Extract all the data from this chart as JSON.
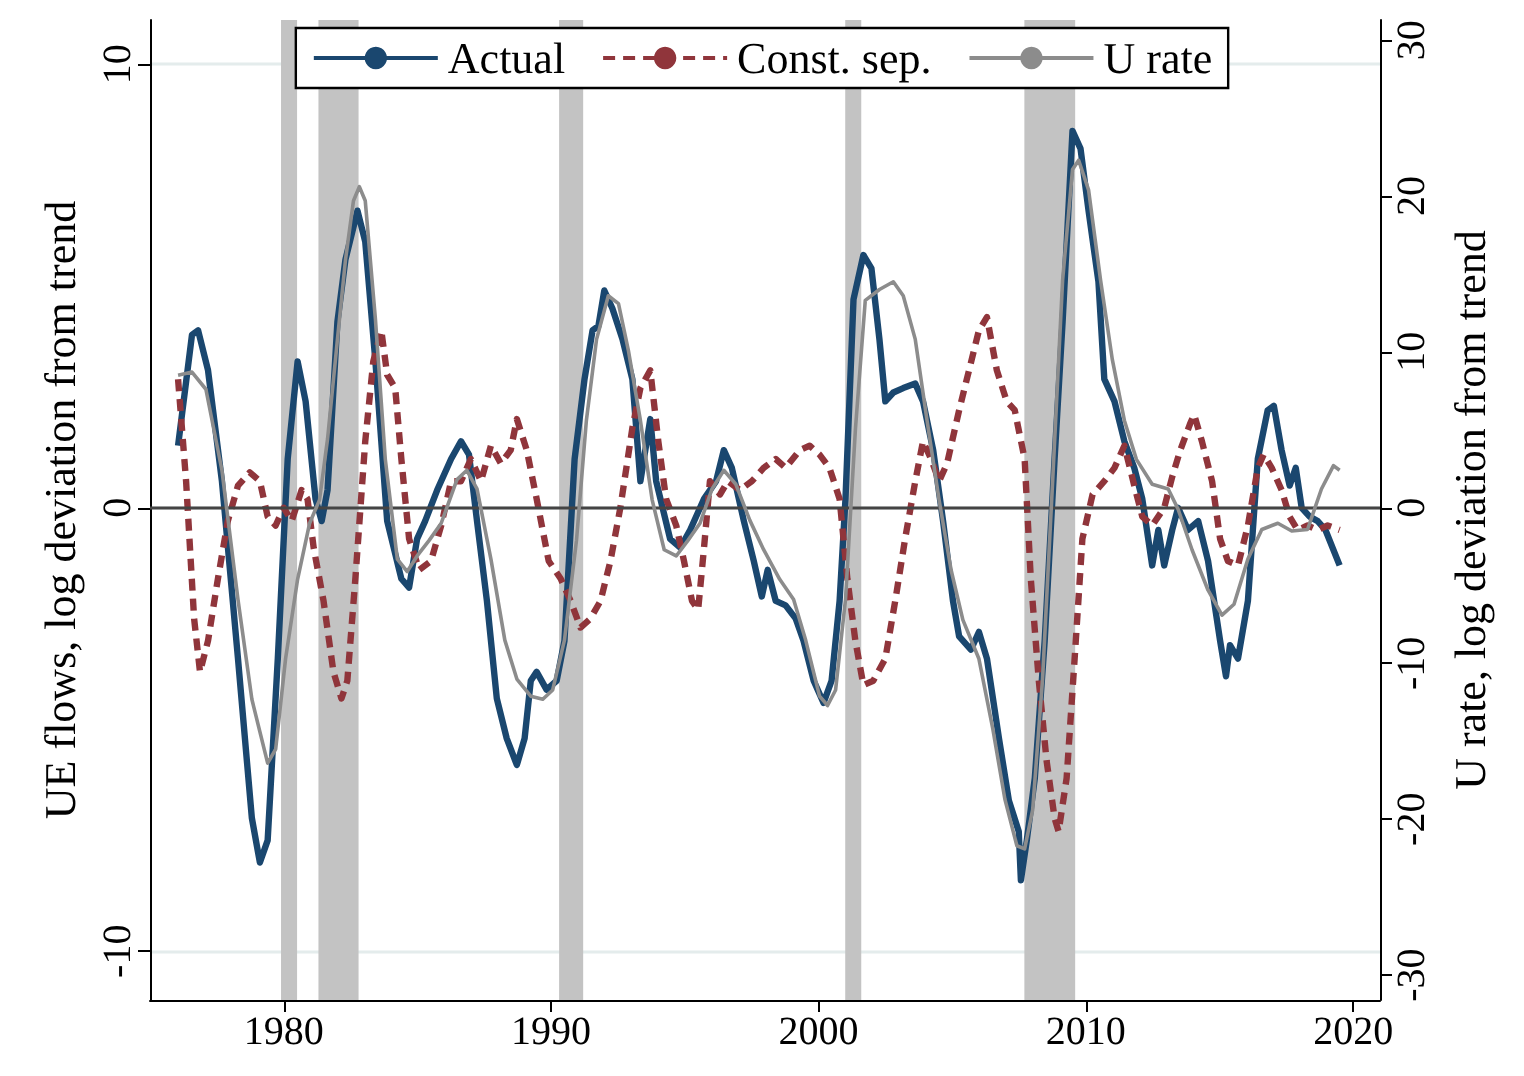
{
  "chart_data": {
    "type": "line",
    "ylabel": "UE flows, log deviation from trend",
    "y2label": "U rate, log deviation from trend",
    "xlim": [
      1975,
      2021
    ],
    "xticks": [
      1980,
      1990,
      2000,
      2010,
      2020
    ],
    "ylim": [
      -11.1,
      11
    ],
    "yticks": [
      -10,
      0,
      10
    ],
    "y2lim": [
      -31.6,
      31.3
    ],
    "y2ticks": [
      -30,
      -20,
      -10,
      0,
      10,
      20,
      30
    ],
    "grid": "y",
    "legend": "top",
    "marker": "none",
    "ref_lines": [
      {
        "axis": "y",
        "value": 0,
        "label": null,
        "color": "#444444",
        "line_style": "solid"
      }
    ],
    "bands": [
      {
        "axis": "x",
        "from": 1979.9,
        "to": 1980.5,
        "label": null,
        "color": "#c3c3c3"
      },
      {
        "axis": "x",
        "from": 1981.3,
        "to": 1982.8,
        "label": null,
        "color": "#c3c3c3"
      },
      {
        "axis": "x",
        "from": 1990.3,
        "to": 1991.2,
        "label": null,
        "color": "#c3c3c3"
      },
      {
        "axis": "x",
        "from": 2001.0,
        "to": 2001.6,
        "label": null,
        "color": "#c3c3c3"
      },
      {
        "axis": "x",
        "from": 2007.7,
        "to": 2009.6,
        "label": null,
        "color": "#c3c3c3"
      }
    ],
    "series": [
      {
        "name": "Actual",
        "color": "#1a476f",
        "line_style": "solid",
        "x": [
          1976.05,
          1976.57,
          1976.8,
          1977.17,
          1977.69,
          1978.29,
          1978.81,
          1979.11,
          1979.4,
          1979.78,
          1980.15,
          1980.52,
          1980.82,
          1981.19,
          1981.42,
          1981.64,
          1982.01,
          1982.31,
          1982.76,
          1983.05,
          1983.43,
          1983.87,
          1984.4,
          1984.69,
          1984.99,
          1985.29,
          1985.74,
          1986.26,
          1986.63,
          1986.93,
          1987.23,
          1987.6,
          1987.97,
          1988.34,
          1988.72,
          1989.01,
          1989.24,
          1989.46,
          1989.83,
          1990.21,
          1990.5,
          1990.88,
          1991.25,
          1991.55,
          1991.77,
          1991.99,
          1992.29,
          1992.67,
          1993.04,
          1993.34,
          1993.71,
          1993.93,
          1994.45,
          1994.83,
          1995.2,
          1995.72,
          1996.17,
          1996.46,
          1996.76,
          1997.21,
          1997.58,
          1997.88,
          1998.1,
          1998.4,
          1998.77,
          1999.15,
          1999.44,
          1999.82,
          2000.19,
          2000.49,
          2000.79,
          2001.01,
          2001.31,
          2001.68,
          2001.98,
          2002.28,
          2002.5,
          2002.8,
          2003.17,
          2003.62,
          2003.91,
          2004.29,
          2004.66,
          2005.03,
          2005.26,
          2005.7,
          2006.0,
          2006.3,
          2006.75,
          2007.12,
          2007.49,
          2007.57,
          2007.79,
          2008.09,
          2008.46,
          2008.83,
          2009.13,
          2009.5,
          2009.8,
          2010.1,
          2010.47,
          2010.69,
          2011.07,
          2011.44,
          2011.81,
          2012.11,
          2012.48,
          2012.71,
          2012.93,
          2013.23,
          2013.45,
          2013.82,
          2014.2,
          2014.57,
          2015.02,
          2015.24,
          2015.39,
          2015.69,
          2016.06,
          2016.43,
          2016.8,
          2017.03,
          2017.32,
          2017.62,
          2017.85,
          2018.07,
          2018.37,
          2018.67,
          2018.96,
          2019.49
        ],
        "values": [
          1.4,
          3.9,
          4.0,
          3.1,
          0.6,
          -3.4,
          -7.0,
          -8.0,
          -7.5,
          -3.4,
          1.1,
          3.3,
          2.4,
          0.2,
          -0.3,
          0.4,
          4.2,
          5.6,
          6.7,
          6.0,
          3.3,
          -0.3,
          -1.6,
          -1.8,
          -0.7,
          -0.3,
          0.4,
          1.1,
          1.5,
          1.2,
          -0.3,
          -2.1,
          -4.3,
          -5.2,
          -5.8,
          -5.2,
          -3.9,
          -3.7,
          -4.1,
          -3.9,
          -3.0,
          1.1,
          2.9,
          4.0,
          4.1,
          4.9,
          4.5,
          3.8,
          2.9,
          0.6,
          2.0,
          0.6,
          -0.7,
          -0.9,
          -0.5,
          0.2,
          0.6,
          1.3,
          0.9,
          -0.3,
          -1.2,
          -2.0,
          -1.4,
          -2.1,
          -2.2,
          -2.5,
          -3.0,
          -3.9,
          -4.4,
          -3.9,
          -2.1,
          0.2,
          4.7,
          5.7,
          5.4,
          3.8,
          2.4,
          2.6,
          2.7,
          2.8,
          2.4,
          1.3,
          -0.3,
          -2.1,
          -2.9,
          -3.2,
          -2.8,
          -3.4,
          -5.2,
          -6.6,
          -7.3,
          -8.4,
          -7.5,
          -6.1,
          -3.0,
          1.1,
          4.2,
          8.5,
          8.1,
          6.7,
          5.1,
          2.9,
          2.4,
          1.5,
          0.9,
          0.2,
          -1.3,
          -0.5,
          -1.3,
          -0.5,
          0,
          -0.5,
          -0.3,
          -1.2,
          -3.0,
          -3.8,
          -3.1,
          -3.4,
          -2.1,
          1.1,
          2.2,
          2.3,
          1.3,
          0.5,
          0.9,
          0,
          -0.2,
          -0.3,
          -0.5,
          -1.3
        ]
      },
      {
        "name": "Const. sep.",
        "color": "#90353b",
        "line_style": "dashed",
        "x": [
          1976.05,
          1976.35,
          1976.65,
          1976.87,
          1977.17,
          1977.54,
          1977.91,
          1978.29,
          1978.73,
          1979.11,
          1979.4,
          1979.7,
          1980.0,
          1980.3,
          1980.67,
          1980.89,
          1981.12,
          1981.49,
          1981.86,
          1982.16,
          1982.38,
          1982.68,
          1983.05,
          1983.35,
          1983.65,
          1983.87,
          1984.17,
          1984.4,
          1984.69,
          1985.07,
          1985.51,
          1985.89,
          1986.26,
          1986.63,
          1987.0,
          1987.38,
          1987.75,
          1988.12,
          1988.49,
          1988.72,
          1989.09,
          1989.46,
          1989.91,
          1990.36,
          1990.73,
          1991.1,
          1991.47,
          1991.85,
          1992.22,
          1992.59,
          1993.04,
          1993.34,
          1993.71,
          1994.01,
          1994.3,
          1994.68,
          1994.97,
          1995.27,
          1995.5,
          1995.72,
          1995.94,
          1996.32,
          1996.61,
          1997.06,
          1997.51,
          1997.95,
          1998.4,
          1998.77,
          1999.3,
          1999.67,
          2000.04,
          2000.41,
          2000.79,
          2001.08,
          2001.38,
          2001.68,
          2002.05,
          2002.5,
          2002.87,
          2003.24,
          2003.62,
          2003.91,
          2004.21,
          2004.51,
          2004.81,
          2005.26,
          2005.63,
          2006.0,
          2006.3,
          2006.67,
          2007.04,
          2007.34,
          2007.71,
          2007.94,
          2008.24,
          2008.53,
          2008.83,
          2008.98,
          2009.28,
          2009.58,
          2009.87,
          2010.25,
          2010.69,
          2011.07,
          2011.44,
          2011.81,
          2012.11,
          2012.48,
          2012.93,
          2013.23,
          2013.53,
          2013.9,
          2014.05,
          2014.34,
          2014.72,
          2015.02,
          2015.31,
          2015.69,
          2016.06,
          2016.43,
          2016.65,
          2016.95,
          2017.32,
          2017.62,
          2017.92,
          2018.29,
          2018.67,
          2019.04,
          2019.49
        ],
        "values": [
          2.9,
          0.6,
          -2.5,
          -3.7,
          -3.0,
          -1.6,
          -0.3,
          0.5,
          0.8,
          0.6,
          -0.2,
          -0.4,
          0,
          -0.3,
          0.4,
          0.2,
          -0.9,
          -2.1,
          -3.7,
          -4.3,
          -3.9,
          -1.6,
          1.5,
          3.3,
          4.0,
          3.0,
          2.7,
          1.1,
          -0.7,
          -1.4,
          -1.2,
          -0.4,
          0.6,
          0.6,
          1.1,
          0.6,
          1.4,
          1.0,
          1.3,
          2.0,
          1.3,
          0.2,
          -1.2,
          -1.6,
          -2.1,
          -2.7,
          -2.5,
          -2.1,
          -1.2,
          0,
          1.8,
          2.7,
          3.1,
          1.5,
          0.2,
          -0.4,
          -1.2,
          -2.1,
          -2.3,
          -0.9,
          0.6,
          0.3,
          0.6,
          0.4,
          0.6,
          0.9,
          1.1,
          0.9,
          1.3,
          1.4,
          1.2,
          0.9,
          0.2,
          -1.6,
          -3.0,
          -4.0,
          -3.9,
          -3.4,
          -2.1,
          -0.7,
          0.6,
          1.5,
          1.1,
          0.6,
          1.0,
          2.2,
          3.1,
          4.0,
          4.3,
          3.1,
          2.4,
          2.2,
          1.1,
          -1.6,
          -3.9,
          -5.7,
          -7.0,
          -7.3,
          -6.1,
          -3.4,
          -0.7,
          0.3,
          0.6,
          0.9,
          1.4,
          0.5,
          -0.2,
          -0.4,
          0,
          0.7,
          1.3,
          1.9,
          2.1,
          1.5,
          0.6,
          -0.7,
          -1.2,
          -1.3,
          -0.4,
          0.9,
          1.2,
          0.9,
          0.4,
          -0.2,
          -0.5,
          -0.4,
          -0.5,
          -0.4,
          -0.5
        ]
      },
      {
        "name": "U rate",
        "color": "#8c8c8c",
        "line_style": "solid",
        "axis": "y2",
        "x": [
          1976.05,
          1976.57,
          1977.09,
          1977.69,
          1978.29,
          1978.81,
          1979.4,
          1979.7,
          1980.07,
          1980.52,
          1980.97,
          1981.34,
          1981.64,
          1982.01,
          1982.31,
          1982.61,
          1982.83,
          1983.05,
          1983.43,
          1983.8,
          1984.25,
          1984.62,
          1984.99,
          1985.44,
          1985.89,
          1986.48,
          1986.85,
          1987.23,
          1987.75,
          1988.27,
          1988.72,
          1989.24,
          1989.69,
          1990.06,
          1990.5,
          1990.95,
          1991.32,
          1991.7,
          1992.14,
          1992.52,
          1992.89,
          1993.34,
          1993.78,
          1994.23,
          1994.68,
          1995.12,
          1995.57,
          1996.02,
          1996.46,
          1996.91,
          1997.43,
          1997.95,
          1998.55,
          1999.07,
          1999.52,
          2000.04,
          2000.34,
          2000.64,
          2001.01,
          2001.38,
          2001.75,
          2002.28,
          2002.8,
          2003.17,
          2003.62,
          2004.06,
          2004.51,
          2004.96,
          2005.4,
          2006.0,
          2006.52,
          2006.97,
          2007.42,
          2007.71,
          2008.01,
          2008.38,
          2008.76,
          2009.13,
          2009.5,
          2009.73,
          2010.1,
          2010.55,
          2010.99,
          2011.44,
          2011.89,
          2012.48,
          2013.08,
          2013.45,
          2013.97,
          2014.57,
          2015.09,
          2015.54,
          2016.06,
          2016.58,
          2017.18,
          2017.7,
          2018.29,
          2018.81,
          2019.26,
          2019.49
        ],
        "values": [
          8.5,
          8.7,
          7.6,
          2.4,
          -5.9,
          -12.3,
          -16.4,
          -15.5,
          -9.7,
          -4.6,
          -1.0,
          0.5,
          4.4,
          10.8,
          15.9,
          19.7,
          20.6,
          19.7,
          12.1,
          3.1,
          -3.3,
          -4.1,
          -3.1,
          -2.1,
          -1.0,
          1.8,
          2.4,
          1.2,
          -3.3,
          -8.5,
          -11.0,
          -12.1,
          -12.3,
          -11.7,
          -8.5,
          -2.1,
          5.6,
          10.8,
          13.6,
          13.1,
          10.1,
          5.6,
          0.5,
          -2.7,
          -3.1,
          -2.1,
          -1.0,
          1.2,
          2.4,
          1.5,
          -0.8,
          -2.7,
          -4.6,
          -5.9,
          -8.5,
          -12.1,
          -12.7,
          -11.7,
          -5.9,
          5.0,
          13.3,
          14.0,
          14.5,
          13.6,
          10.8,
          5.6,
          0.5,
          -4.0,
          -7.2,
          -9.7,
          -14.2,
          -18.7,
          -21.7,
          -21.9,
          -19.4,
          -11.0,
          1.8,
          14.6,
          21.7,
          22.3,
          20.4,
          14.6,
          9.5,
          5.6,
          3.1,
          1.5,
          1.2,
          -0.1,
          -2.7,
          -5.3,
          -6.9,
          -6.2,
          -3.3,
          -1.4,
          -1.0,
          -1.5,
          -1.4,
          1.2,
          2.7,
          2.4
        ]
      }
    ]
  }
}
